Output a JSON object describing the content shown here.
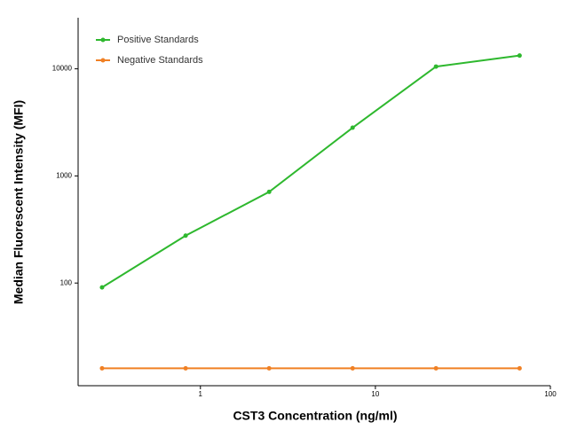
{
  "chart_data": {
    "type": "line",
    "x_label": "CST3 Concentration (ng/ml)",
    "y_label": "Median  Fluorescent Intensity  (MFI)",
    "x": [
      0.274,
      0.823,
      2.47,
      7.41,
      22.2,
      66.7
    ],
    "series": [
      {
        "name": "Positive Standards",
        "color": "#2eb82e",
        "values": [
          91,
          277,
          710,
          2820,
          10500,
          13300
        ]
      },
      {
        "name": "Negative Standards",
        "color": "#f08024",
        "values": [
          16,
          16,
          16,
          16,
          16,
          16
        ]
      }
    ],
    "xlim": [
      0.2,
      100
    ],
    "ylim": [
      11,
      30000
    ],
    "xticks": [
      1,
      10,
      100
    ],
    "yticks": [
      100,
      1000,
      10000
    ],
    "xscale": "log",
    "yscale": "log",
    "legend": "upper left"
  }
}
